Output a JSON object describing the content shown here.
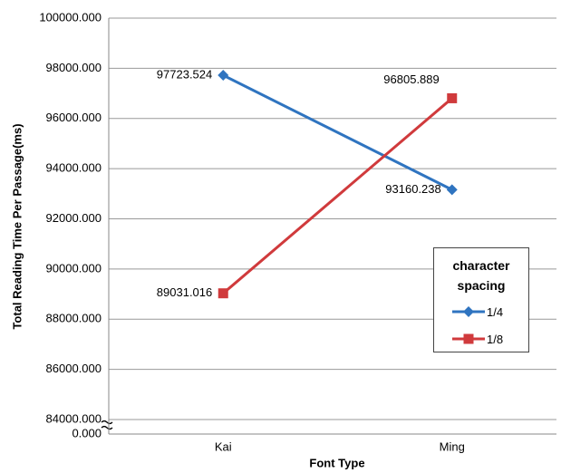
{
  "chart_data": {
    "type": "line",
    "x_label": "Font Type",
    "y_label": "Total Reading Time Per Passage(ms)",
    "categories": [
      "Kai",
      "Ming"
    ],
    "legend_title": "character spacing",
    "series": [
      {
        "name": "1/4",
        "color": "#2f74c0",
        "marker": "diamond",
        "values": [
          97723.524,
          93160.238
        ]
      },
      {
        "name": "1/8",
        "color": "#d03a3c",
        "marker": "square",
        "values": [
          89031.016,
          96805.889
        ]
      }
    ],
    "ylim": [
      0,
      100000
    ],
    "axis_break": true,
    "yticks": [
      {
        "value": 0,
        "label": "0.000"
      },
      {
        "value": 84000,
        "label": "84000.000"
      },
      {
        "value": 86000,
        "label": "86000.000"
      },
      {
        "value": 88000,
        "label": "88000.000"
      },
      {
        "value": 90000,
        "label": "90000.000"
      },
      {
        "value": 92000,
        "label": "92000.000"
      },
      {
        "value": 94000,
        "label": "94000.000"
      },
      {
        "value": 96000,
        "label": "96000.000"
      },
      {
        "value": 98000,
        "label": "98000.000"
      },
      {
        "value": 100000,
        "label": "100000.000"
      }
    ],
    "grid": true
  }
}
